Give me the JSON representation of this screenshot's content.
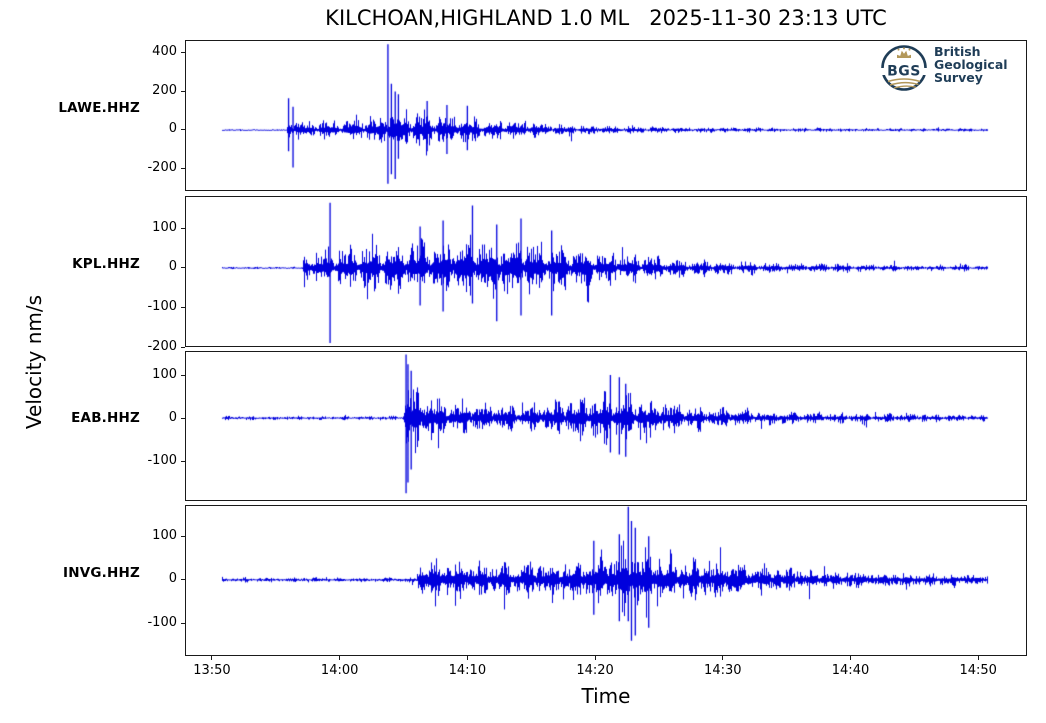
{
  "title": "KILCHOAN,HIGHLAND 1.0 ML   2025-11-30 23:13 UTC",
  "axis": {
    "ylabel": "Velocity nm/s",
    "xlabel": "Time"
  },
  "logo": {
    "abbr": "BGS",
    "lines": [
      "British",
      "Geological",
      "Survey"
    ],
    "navy": "#1f3d57",
    "gold": "#b3985a"
  },
  "chart_data": {
    "type": "line",
    "title": "KILCHOAN,HIGHLAND 1.0 ML   2025-11-30 23:13 UTC",
    "xlabel": "Time",
    "ylabel": "Velocity nm/s",
    "trace_color": "#0000dd",
    "grid": false,
    "x_axis": {
      "origin_time": "13:48",
      "xlim_minutes": [
        -0.11,
        65.82
      ],
      "ticks": [
        {
          "m": 2,
          "label": "13:50"
        },
        {
          "m": 12,
          "label": "14:00"
        },
        {
          "m": 22,
          "label": "14:10"
        },
        {
          "m": 32,
          "label": "14:20"
        },
        {
          "m": 42,
          "label": "14:30"
        },
        {
          "m": 52,
          "label": "14:40"
        },
        {
          "m": 62,
          "label": "14:50"
        }
      ]
    },
    "stations": [
      {
        "name": "LAWE.HHZ",
        "ylim": [
          -317,
          467
        ],
        "yticks": [
          400,
          200,
          0,
          -200
        ],
        "data_start_m": 2.75,
        "data_end_m": 62.75,
        "onset_m": 7.9,
        "envelope": [
          [
            2.75,
            4
          ],
          [
            7.85,
            4
          ],
          [
            8.0,
            100
          ],
          [
            8.5,
            60
          ],
          [
            9.5,
            48
          ],
          [
            11,
            52
          ],
          [
            13,
            62
          ],
          [
            15,
            85
          ],
          [
            15.7,
            120
          ],
          [
            15.9,
            160
          ],
          [
            16.4,
            130
          ],
          [
            17.5,
            110
          ],
          [
            19,
            90
          ],
          [
            21,
            78
          ],
          [
            23,
            64
          ],
          [
            25,
            54
          ],
          [
            27,
            46
          ],
          [
            30,
            34
          ],
          [
            33,
            26
          ],
          [
            37,
            20
          ],
          [
            42,
            15
          ],
          [
            48,
            12
          ],
          [
            55,
            10
          ],
          [
            62.75,
            9
          ]
        ],
        "spikes": [
          [
            8.0,
            165,
            -110
          ],
          [
            8.35,
            120,
            -195
          ],
          [
            15.78,
            445,
            -280
          ],
          [
            16.05,
            240,
            -230
          ],
          [
            16.35,
            200,
            -255
          ],
          [
            16.6,
            185,
            -150
          ],
          [
            18.85,
            150,
            -110
          ],
          [
            20.4,
            130,
            -125
          ],
          [
            22.0,
            125,
            -105
          ]
        ]
      },
      {
        "name": "KPL.HHZ",
        "ylim": [
          -200,
          182
        ],
        "yticks": [
          100,
          0,
          -100,
          -200
        ],
        "data_start_m": 2.75,
        "data_end_m": 62.75,
        "onset_m": 9.1,
        "envelope": [
          [
            2.75,
            3
          ],
          [
            9.05,
            3
          ],
          [
            9.2,
            48
          ],
          [
            10,
            44
          ],
          [
            11,
            50
          ],
          [
            12,
            55
          ],
          [
            14,
            60
          ],
          [
            16,
            68
          ],
          [
            18,
            72
          ],
          [
            20,
            78
          ],
          [
            22,
            82
          ],
          [
            24,
            85
          ],
          [
            26,
            80
          ],
          [
            28,
            70
          ],
          [
            29.5,
            62
          ],
          [
            31,
            55
          ],
          [
            33,
            45
          ],
          [
            35,
            38
          ],
          [
            38,
            28
          ],
          [
            41,
            22
          ],
          [
            45,
            17
          ],
          [
            50,
            13
          ],
          [
            56,
            10
          ],
          [
            62.75,
            8
          ]
        ],
        "spikes": [
          [
            11.25,
            165,
            -190
          ],
          [
            18.3,
            105,
            -95
          ],
          [
            20.1,
            120,
            -110
          ],
          [
            22.4,
            158,
            -90
          ],
          [
            24.3,
            110,
            -135
          ],
          [
            26.2,
            125,
            -120
          ],
          [
            28.6,
            95,
            -120
          ]
        ]
      },
      {
        "name": "EAB.HHZ",
        "ylim": [
          -193,
          156
        ],
        "yticks": [
          100,
          0,
          -100
        ],
        "data_start_m": 2.75,
        "data_end_m": 62.75,
        "onset_m": 17.1,
        "envelope": [
          [
            2.75,
            5
          ],
          [
            16.95,
            5
          ],
          [
            17.15,
            120
          ],
          [
            17.5,
            95
          ],
          [
            18.2,
            70
          ],
          [
            19.2,
            55
          ],
          [
            20.5,
            46
          ],
          [
            22,
            40
          ],
          [
            24,
            36
          ],
          [
            26,
            34
          ],
          [
            28,
            38
          ],
          [
            30,
            48
          ],
          [
            31.5,
            58
          ],
          [
            33,
            68
          ],
          [
            34,
            62
          ],
          [
            35.5,
            52
          ],
          [
            37,
            44
          ],
          [
            39,
            34
          ],
          [
            41,
            27
          ],
          [
            44,
            21
          ],
          [
            48,
            16
          ],
          [
            53,
            12
          ],
          [
            58,
            10
          ],
          [
            62.75,
            9
          ]
        ],
        "spikes": [
          [
            17.2,
            148,
            -175
          ],
          [
            17.35,
            125,
            -150
          ],
          [
            17.6,
            110,
            -120
          ],
          [
            33.2,
            100,
            -80
          ],
          [
            33.9,
            95,
            -85
          ],
          [
            34.4,
            80,
            -90
          ]
        ]
      },
      {
        "name": "INVG.HHZ",
        "ylim": [
          -175,
          172
        ],
        "yticks": [
          100,
          0,
          -100
        ],
        "data_start_m": 2.75,
        "data_end_m": 62.75,
        "onset_m": 18.1,
        "envelope": [
          [
            2.75,
            6
          ],
          [
            18.0,
            6
          ],
          [
            18.2,
            62
          ],
          [
            19,
            56
          ],
          [
            20.5,
            50
          ],
          [
            22,
            47
          ],
          [
            24,
            44
          ],
          [
            26,
            42
          ],
          [
            28,
            46
          ],
          [
            30,
            52
          ],
          [
            32,
            62
          ],
          [
            33.5,
            78
          ],
          [
            34.5,
            95
          ],
          [
            35.2,
            88
          ],
          [
            36.5,
            72
          ],
          [
            38,
            62
          ],
          [
            40,
            52
          ],
          [
            42,
            45
          ],
          [
            45,
            36
          ],
          [
            48,
            30
          ],
          [
            52,
            24
          ],
          [
            57,
            19
          ],
          [
            62.75,
            15
          ]
        ],
        "spikes": [
          [
            31.9,
            90,
            -80
          ],
          [
            33.9,
            105,
            -95
          ],
          [
            34.6,
            168,
            -95
          ],
          [
            34.85,
            135,
            -140
          ],
          [
            35.15,
            120,
            -128
          ],
          [
            36.2,
            100,
            -110
          ]
        ]
      }
    ]
  }
}
